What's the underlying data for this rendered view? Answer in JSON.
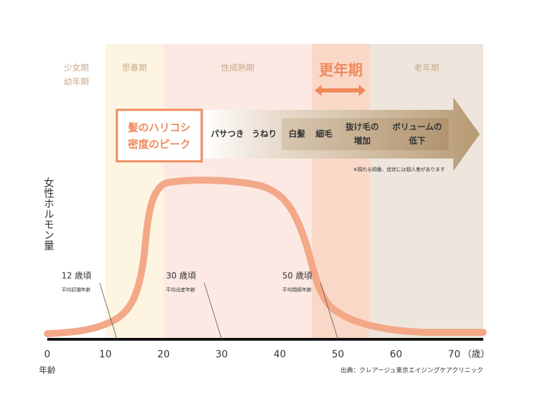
{
  "chart_data": {
    "type": "bands",
    "y_label": "女性ホルモン量",
    "x_label": "年齢",
    "x_unit": "（歳）",
    "xlim": [
      0,
      75
    ],
    "xticks": [
      0,
      10,
      20,
      30,
      40,
      50,
      60,
      70
    ],
    "bands": [
      {
        "lines": [
          "少女期",
          "幼年期"
        ],
        "x": [
          0,
          10
        ],
        "color": "#ffffff"
      },
      {
        "lines": [
          "思春期"
        ],
        "x": [
          10,
          20
        ],
        "color": "#fdf5e2"
      },
      {
        "lines": [
          "性成熟期"
        ],
        "x": [
          20,
          45.5
        ],
        "color": "#fce9e4"
      },
      {
        "lines": [
          "更年期"
        ],
        "x": [
          45.5,
          55.5
        ],
        "color": "#fad8c7",
        "highlight": true
      },
      {
        "lines": [
          "老年期"
        ],
        "x": [
          55.5,
          75
        ],
        "color": "#eee6dc"
      }
    ],
    "peak_box": [
      "髪のハリコシ",
      "密度のピーク"
    ],
    "symptoms": [
      [
        "パサつき"
      ],
      [
        "うねり"
      ],
      [
        "白髪"
      ],
      [
        "細毛"
      ],
      [
        "抜け毛の",
        "増加"
      ],
      [
        "ボリュームの",
        "低下"
      ]
    ],
    "note": "※現れる順番、症状には個人差があります",
    "annotations": [
      {
        "text": "12 歳頃",
        "sub": "平均初潮年齢",
        "x": 12
      },
      {
        "text": "30 歳頃",
        "sub": "平均出産年齢",
        "x": 30
      },
      {
        "text": "50 歳頃",
        "sub": "平均閉経年齢",
        "x": 50
      }
    ],
    "source": "出典：クレアージュ東京エイジングケアクリニック"
  }
}
